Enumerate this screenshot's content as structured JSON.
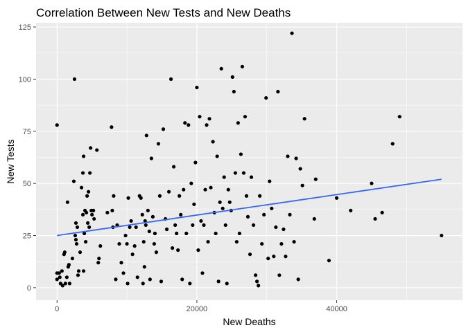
{
  "chart_data": {
    "type": "scatter",
    "title": "Correlation Between New Tests and New Deaths",
    "xlabel": "New Deaths",
    "ylabel": "New Tests",
    "xlim": [
      -3000,
      58000
    ],
    "ylim": [
      -6,
      127
    ],
    "xticks": [
      0,
      20000,
      40000
    ],
    "xtick_labels": [
      "0",
      "20000",
      "40000"
    ],
    "yticks": [
      0,
      25,
      50,
      75,
      100,
      125
    ],
    "ytick_labels": [
      "0",
      "25",
      "50",
      "75",
      "100",
      "125"
    ],
    "grid": true,
    "legend": "none",
    "colors": {
      "panel": "#ebebeb",
      "grid": "#ffffff",
      "points": "#000000",
      "trend": "#3366ff"
    },
    "trend_line": {
      "x": [
        0,
        55000
      ],
      "y": [
        25,
        52
      ]
    },
    "points": [
      {
        "x": 0,
        "y": 78
      },
      {
        "x": 0,
        "y": 7
      },
      {
        "x": 0,
        "y": 4
      },
      {
        "x": 300,
        "y": 7
      },
      {
        "x": 400,
        "y": 5
      },
      {
        "x": 500,
        "y": 2
      },
      {
        "x": 700,
        "y": 8
      },
      {
        "x": 800,
        "y": 1
      },
      {
        "x": 1000,
        "y": 16
      },
      {
        "x": 1100,
        "y": 17
      },
      {
        "x": 1200,
        "y": 2
      },
      {
        "x": 1400,
        "y": 5
      },
      {
        "x": 1500,
        "y": 41
      },
      {
        "x": 1600,
        "y": 10
      },
      {
        "x": 1700,
        "y": 11
      },
      {
        "x": 1800,
        "y": 2
      },
      {
        "x": 2200,
        "y": 14
      },
      {
        "x": 2400,
        "y": 51
      },
      {
        "x": 2500,
        "y": 100
      },
      {
        "x": 2600,
        "y": 25
      },
      {
        "x": 2700,
        "y": 23
      },
      {
        "x": 2700,
        "y": 31
      },
      {
        "x": 2800,
        "y": 21
      },
      {
        "x": 2900,
        "y": 29
      },
      {
        "x": 3000,
        "y": 6
      },
      {
        "x": 3100,
        "y": 8
      },
      {
        "x": 3300,
        "y": 17
      },
      {
        "x": 3500,
        "y": 48
      },
      {
        "x": 3700,
        "y": 55
      },
      {
        "x": 3700,
        "y": 35
      },
      {
        "x": 3800,
        "y": 63
      },
      {
        "x": 3800,
        "y": 8
      },
      {
        "x": 3900,
        "y": 26
      },
      {
        "x": 4000,
        "y": 37
      },
      {
        "x": 4100,
        "y": 22
      },
      {
        "x": 4200,
        "y": 36
      },
      {
        "x": 4300,
        "y": 44
      },
      {
        "x": 4400,
        "y": 31
      },
      {
        "x": 4500,
        "y": 46
      },
      {
        "x": 4600,
        "y": 29
      },
      {
        "x": 4700,
        "y": 55
      },
      {
        "x": 4800,
        "y": 67
      },
      {
        "x": 4900,
        "y": 37
      },
      {
        "x": 5000,
        "y": 35
      },
      {
        "x": 5200,
        "y": 37
      },
      {
        "x": 5300,
        "y": 33
      },
      {
        "x": 5700,
        "y": 66
      },
      {
        "x": 5900,
        "y": 12
      },
      {
        "x": 6000,
        "y": 14
      },
      {
        "x": 6200,
        "y": 20
      },
      {
        "x": 7200,
        "y": 36
      },
      {
        "x": 7800,
        "y": 77
      },
      {
        "x": 7900,
        "y": 37
      },
      {
        "x": 8000,
        "y": 29
      },
      {
        "x": 8100,
        "y": 44
      },
      {
        "x": 8400,
        "y": 4
      },
      {
        "x": 8600,
        "y": 30
      },
      {
        "x": 8900,
        "y": 21
      },
      {
        "x": 9200,
        "y": 12
      },
      {
        "x": 9500,
        "y": 7
      },
      {
        "x": 9800,
        "y": 25
      },
      {
        "x": 10000,
        "y": 21
      },
      {
        "x": 10100,
        "y": 2
      },
      {
        "x": 10200,
        "y": 43
      },
      {
        "x": 10400,
        "y": 29
      },
      {
        "x": 10600,
        "y": 32
      },
      {
        "x": 10800,
        "y": 16
      },
      {
        "x": 11100,
        "y": 20
      },
      {
        "x": 11300,
        "y": 29
      },
      {
        "x": 11500,
        "y": 5
      },
      {
        "x": 11800,
        "y": 44
      },
      {
        "x": 12000,
        "y": 43
      },
      {
        "x": 12200,
        "y": 35
      },
      {
        "x": 12300,
        "y": 2
      },
      {
        "x": 12400,
        "y": 22
      },
      {
        "x": 12500,
        "y": 10
      },
      {
        "x": 12600,
        "y": 32
      },
      {
        "x": 12700,
        "y": 30
      },
      {
        "x": 12800,
        "y": 73
      },
      {
        "x": 13000,
        "y": 37
      },
      {
        "x": 13200,
        "y": 27
      },
      {
        "x": 13300,
        "y": 4
      },
      {
        "x": 13500,
        "y": 62
      },
      {
        "x": 13700,
        "y": 34
      },
      {
        "x": 13900,
        "y": 21
      },
      {
        "x": 14000,
        "y": 26
      },
      {
        "x": 14200,
        "y": 17
      },
      {
        "x": 14500,
        "y": 69
      },
      {
        "x": 14700,
        "y": 44
      },
      {
        "x": 14900,
        "y": 3
      },
      {
        "x": 15200,
        "y": 76
      },
      {
        "x": 15500,
        "y": 33
      },
      {
        "x": 15700,
        "y": 28
      },
      {
        "x": 16000,
        "y": 46
      },
      {
        "x": 16300,
        "y": 100
      },
      {
        "x": 16500,
        "y": 19
      },
      {
        "x": 16700,
        "y": 58
      },
      {
        "x": 16900,
        "y": 30
      },
      {
        "x": 17100,
        "y": 26
      },
      {
        "x": 17300,
        "y": 18
      },
      {
        "x": 17500,
        "y": 44
      },
      {
        "x": 17700,
        "y": 35
      },
      {
        "x": 17900,
        "y": 4
      },
      {
        "x": 18100,
        "y": 47
      },
      {
        "x": 18300,
        "y": 79
      },
      {
        "x": 18500,
        "y": 26
      },
      {
        "x": 18800,
        "y": 78
      },
      {
        "x": 19000,
        "y": 2
      },
      {
        "x": 19200,
        "y": 50
      },
      {
        "x": 19400,
        "y": 30
      },
      {
        "x": 19600,
        "y": 40
      },
      {
        "x": 19800,
        "y": 60
      },
      {
        "x": 20000,
        "y": 96
      },
      {
        "x": 20200,
        "y": 18
      },
      {
        "x": 20400,
        "y": 82
      },
      {
        "x": 20600,
        "y": 32
      },
      {
        "x": 20800,
        "y": 7
      },
      {
        "x": 21000,
        "y": 30
      },
      {
        "x": 21200,
        "y": 47
      },
      {
        "x": 21400,
        "y": 78
      },
      {
        "x": 21600,
        "y": 22
      },
      {
        "x": 21800,
        "y": 81
      },
      {
        "x": 22000,
        "y": 48
      },
      {
        "x": 22300,
        "y": 70
      },
      {
        "x": 22500,
        "y": 36
      },
      {
        "x": 22700,
        "y": 26
      },
      {
        "x": 22900,
        "y": 63
      },
      {
        "x": 23100,
        "y": 3
      },
      {
        "x": 23300,
        "y": 41
      },
      {
        "x": 23500,
        "y": 105
      },
      {
        "x": 23700,
        "y": 38
      },
      {
        "x": 23900,
        "y": 53
      },
      {
        "x": 24100,
        "y": 30
      },
      {
        "x": 24300,
        "y": 2
      },
      {
        "x": 24500,
        "y": 47
      },
      {
        "x": 24700,
        "y": 41
      },
      {
        "x": 24900,
        "y": 37
      },
      {
        "x": 25100,
        "y": 101
      },
      {
        "x": 25300,
        "y": 94
      },
      {
        "x": 25500,
        "y": 55
      },
      {
        "x": 25700,
        "y": 22
      },
      {
        "x": 25900,
        "y": 79
      },
      {
        "x": 26100,
        "y": 26
      },
      {
        "x": 26300,
        "y": 64
      },
      {
        "x": 26500,
        "y": 106
      },
      {
        "x": 26700,
        "y": 55
      },
      {
        "x": 26900,
        "y": 82
      },
      {
        "x": 27100,
        "y": 44
      },
      {
        "x": 27300,
        "y": 34
      },
      {
        "x": 27600,
        "y": 16
      },
      {
        "x": 27800,
        "y": 53
      },
      {
        "x": 28100,
        "y": 30
      },
      {
        "x": 28400,
        "y": 6
      },
      {
        "x": 28600,
        "y": 3
      },
      {
        "x": 28800,
        "y": 1
      },
      {
        "x": 29000,
        "y": 44
      },
      {
        "x": 29300,
        "y": 21
      },
      {
        "x": 29600,
        "y": 35
      },
      {
        "x": 29900,
        "y": 91
      },
      {
        "x": 30200,
        "y": 14
      },
      {
        "x": 30400,
        "y": 51
      },
      {
        "x": 30700,
        "y": 38
      },
      {
        "x": 31000,
        "y": 15
      },
      {
        "x": 31300,
        "y": 29
      },
      {
        "x": 31600,
        "y": 94
      },
      {
        "x": 31800,
        "y": 6
      },
      {
        "x": 32100,
        "y": 21
      },
      {
        "x": 32400,
        "y": 28
      },
      {
        "x": 32700,
        "y": 15
      },
      {
        "x": 33000,
        "y": 63
      },
      {
        "x": 33300,
        "y": 35
      },
      {
        "x": 33600,
        "y": 122
      },
      {
        "x": 33900,
        "y": 22
      },
      {
        "x": 34200,
        "y": 62
      },
      {
        "x": 34500,
        "y": 4
      },
      {
        "x": 34800,
        "y": 57
      },
      {
        "x": 35100,
        "y": 49
      },
      {
        "x": 35400,
        "y": 81
      },
      {
        "x": 36800,
        "y": 33
      },
      {
        "x": 37000,
        "y": 52
      },
      {
        "x": 38900,
        "y": 13
      },
      {
        "x": 40000,
        "y": 43
      },
      {
        "x": 42000,
        "y": 37
      },
      {
        "x": 45000,
        "y": 50
      },
      {
        "x": 45500,
        "y": 33
      },
      {
        "x": 46500,
        "y": 36
      },
      {
        "x": 48000,
        "y": 69
      },
      {
        "x": 49000,
        "y": 82
      },
      {
        "x": 55000,
        "y": 25
      }
    ]
  }
}
